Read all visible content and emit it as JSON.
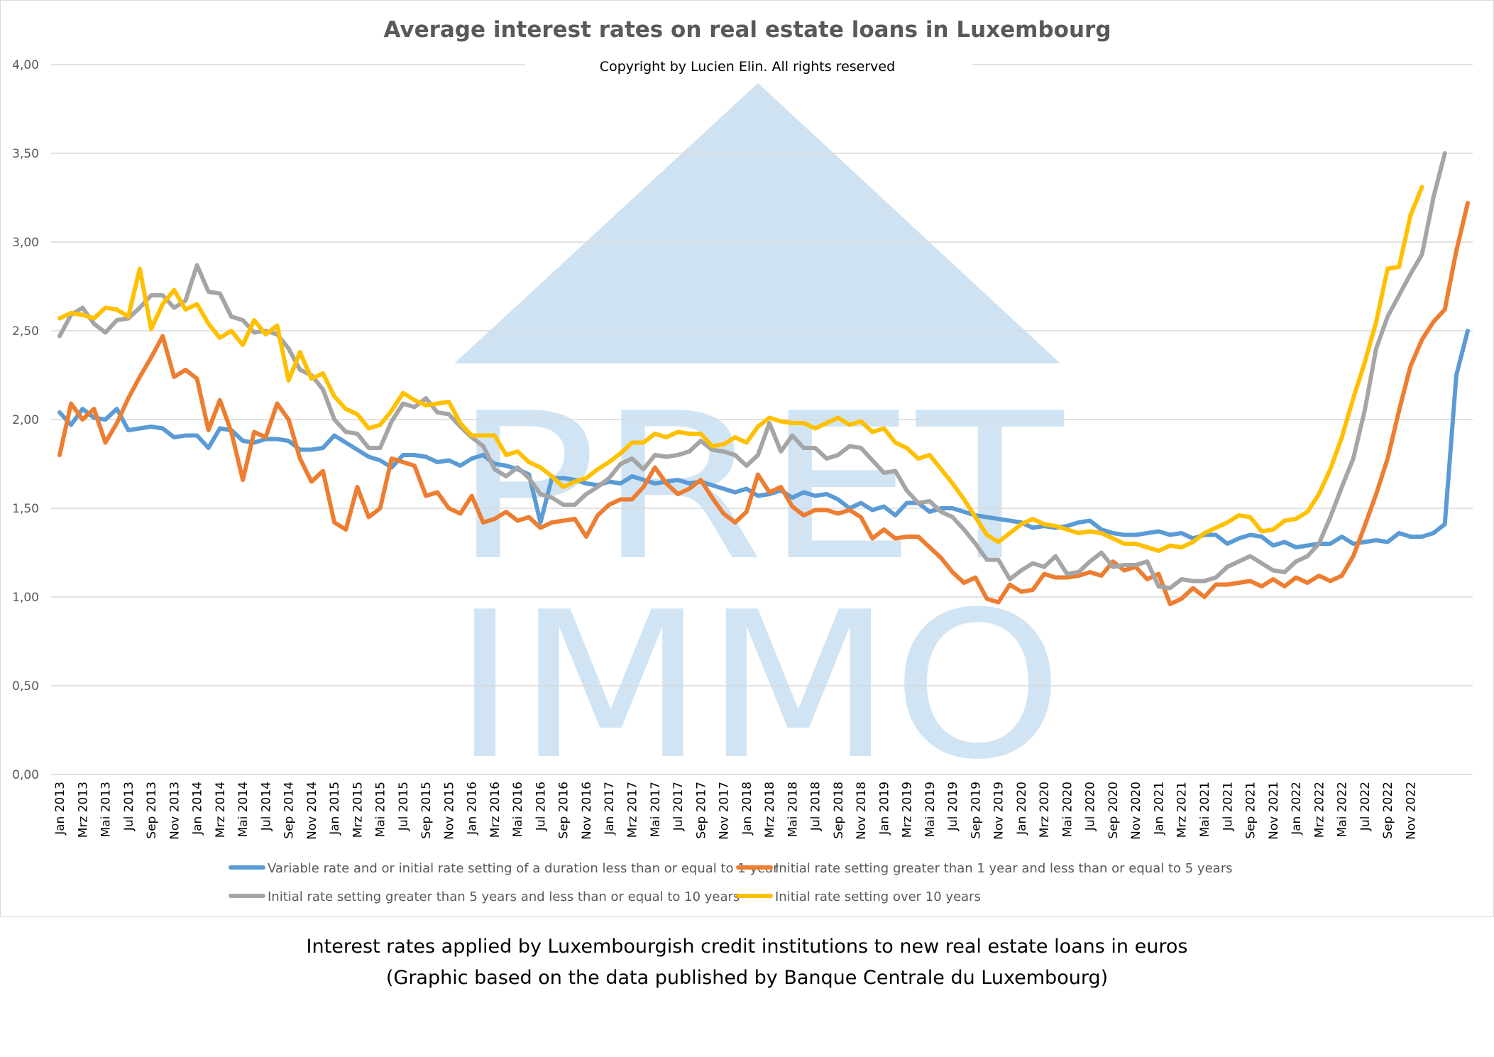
{
  "chart_data": {
    "type": "line",
    "title": "Average interest rates on real estate loans in Luxembourg",
    "subtitle": "Copyright by Lucien Elin. All rights reserved",
    "watermark": "PRET IMMO",
    "xlabel": "",
    "ylabel": "",
    "ylim": [
      0,
      4
    ],
    "yticks": [
      "0,00",
      "0,50",
      "1,00",
      "1,50",
      "2,00",
      "2,50",
      "3,00",
      "3,50",
      "4,00"
    ],
    "grid": true,
    "legend_position": "bottom",
    "start_month": "Jan 2013",
    "end_month": "Nov 2022",
    "xtick_labels": [
      "Jan 2013",
      "Mrz 2013",
      "Mai 2013",
      "Jul 2013",
      "Sep 2013",
      "Nov 2013",
      "Jan 2014",
      "Mrz 2014",
      "Mai 2014",
      "Jul 2014",
      "Sep 2014",
      "Nov 2014",
      "Jan 2015",
      "Mrz 2015",
      "Mai 2015",
      "Jul 2015",
      "Sep 2015",
      "Nov 2015",
      "Jan 2016",
      "Mrz 2016",
      "Mai 2016",
      "Jul 2016",
      "Sep 2016",
      "Nov 2016",
      "Jan 2017",
      "Mrz 2017",
      "Mai 2017",
      "Jul 2017",
      "Sep 2017",
      "Nov 2017",
      "Jan 2018",
      "Mrz 2018",
      "Mai 2018",
      "Jul 2018",
      "Sep 2018",
      "Nov 2018",
      "Jan 2019",
      "Mrz 2019",
      "Mai 2019",
      "Jul 2019",
      "Sep 2019",
      "Nov 2019",
      "Jan 2020",
      "Mrz 2020",
      "Mai 2020",
      "Jul 2020",
      "Sep 2020",
      "Nov 2020",
      "Jan 2021",
      "Mrz 2021",
      "Mai 2021",
      "Jul 2021",
      "Sep 2021",
      "Nov 2021",
      "Jan 2022",
      "Mrz 2022",
      "Mai 2022",
      "Jul 2022",
      "Sep 2022",
      "Nov 2022"
    ],
    "series": [
      {
        "name": "Variable rate and or initial rate setting of a duration less than or equal to 1 year",
        "color": "#5b9bd5",
        "yearly_anchors": [
          2.04,
          1.91,
          1.83,
          1.78,
          1.75,
          1.66,
          1.59,
          1.53,
          1.4,
          1.35,
          1.32,
          1.4
        ],
        "values": [
          2.04,
          1.97,
          2.06,
          2.01,
          2.0,
          2.06,
          1.94,
          1.95,
          1.96,
          1.95,
          1.9,
          1.91,
          1.91,
          1.84,
          1.95,
          1.94,
          1.88,
          1.87,
          1.89,
          1.89,
          1.88,
          1.83,
          1.83,
          1.84,
          1.91,
          1.87,
          1.83,
          1.79,
          1.77,
          1.73,
          1.8,
          1.8,
          1.79,
          1.76,
          1.77,
          1.74,
          1.78,
          1.8,
          1.75,
          1.74,
          1.72,
          1.69,
          1.42,
          1.67,
          1.67,
          1.66,
          1.64,
          1.63,
          1.65,
          1.64,
          1.68,
          1.66,
          1.64,
          1.65,
          1.66,
          1.64,
          1.65,
          1.63,
          1.61,
          1.59,
          1.61,
          1.57,
          1.58,
          1.6,
          1.56,
          1.59,
          1.57,
          1.58,
          1.55,
          1.5,
          1.53,
          1.49,
          1.51,
          1.46,
          1.53,
          1.53,
          1.48,
          1.5,
          1.5,
          1.48,
          1.46,
          1.45,
          1.44,
          1.43,
          1.42,
          1.39,
          1.4,
          1.39,
          1.4,
          1.42,
          1.43,
          1.38,
          1.36,
          1.35,
          1.35,
          1.36,
          1.37,
          1.35,
          1.36,
          1.33,
          1.35,
          1.35,
          1.3,
          1.33,
          1.35,
          1.34,
          1.29,
          1.31,
          1.28,
          1.29,
          1.3,
          1.3,
          1.34,
          1.3,
          1.31,
          1.32,
          1.31,
          1.36,
          1.34,
          1.34,
          1.36,
          1.41,
          2.25,
          2.5
        ]
      },
      {
        "name": "Initial rate setting greater than 1 year and less than or equal to 5 years",
        "color": "#ed7d31",
        "values": [
          1.8,
          2.09,
          2.0,
          2.06,
          1.87,
          1.98,
          2.12,
          2.24,
          2.35,
          2.47,
          2.24,
          2.28,
          2.23,
          1.94,
          2.11,
          1.93,
          1.66,
          1.93,
          1.9,
          2.09,
          2.0,
          1.78,
          1.65,
          1.71,
          1.42,
          1.38,
          1.62,
          1.45,
          1.5,
          1.78,
          1.76,
          1.74,
          1.57,
          1.59,
          1.5,
          1.47,
          1.57,
          1.42,
          1.44,
          1.48,
          1.43,
          1.45,
          1.39,
          1.42,
          1.43,
          1.44,
          1.34,
          1.46,
          1.52,
          1.55,
          1.55,
          1.62,
          1.73,
          1.64,
          1.58,
          1.61,
          1.66,
          1.56,
          1.47,
          1.42,
          1.48,
          1.69,
          1.59,
          1.62,
          1.51,
          1.46,
          1.49,
          1.49,
          1.47,
          1.49,
          1.45,
          1.33,
          1.38,
          1.33,
          1.34,
          1.34,
          1.28,
          1.22,
          1.14,
          1.08,
          1.11,
          0.99,
          0.97,
          1.07,
          1.03,
          1.04,
          1.13,
          1.11,
          1.11,
          1.12,
          1.14,
          1.12,
          1.2,
          1.15,
          1.17,
          1.1,
          1.13,
          0.96,
          0.99,
          1.05,
          1.0,
          1.07,
          1.07,
          1.08,
          1.09,
          1.06,
          1.1,
          1.06,
          1.11,
          1.08,
          1.12,
          1.09,
          1.12,
          1.23,
          1.4,
          1.58,
          1.78,
          2.05,
          2.3,
          2.45,
          2.55,
          2.62,
          2.95,
          3.22
        ]
      },
      {
        "name": "Initial rate setting greater than 5 years and less than or equal to 10 years",
        "color": "#a5a5a5",
        "values": [
          2.47,
          2.59,
          2.63,
          2.54,
          2.49,
          2.56,
          2.57,
          2.63,
          2.7,
          2.7,
          2.63,
          2.67,
          2.87,
          2.72,
          2.71,
          2.58,
          2.56,
          2.49,
          2.5,
          2.48,
          2.4,
          2.28,
          2.25,
          2.17,
          2.0,
          1.93,
          1.92,
          1.84,
          1.84,
          1.99,
          2.09,
          2.07,
          2.12,
          2.04,
          2.03,
          1.96,
          1.9,
          1.85,
          1.72,
          1.68,
          1.73,
          1.67,
          1.58,
          1.56,
          1.52,
          1.52,
          1.58,
          1.62,
          1.67,
          1.75,
          1.78,
          1.72,
          1.8,
          1.79,
          1.8,
          1.82,
          1.88,
          1.83,
          1.82,
          1.8,
          1.74,
          1.8,
          1.98,
          1.82,
          1.91,
          1.84,
          1.84,
          1.78,
          1.8,
          1.85,
          1.84,
          1.77,
          1.7,
          1.71,
          1.6,
          1.53,
          1.54,
          1.48,
          1.45,
          1.38,
          1.3,
          1.21,
          1.21,
          1.1,
          1.15,
          1.19,
          1.17,
          1.23,
          1.13,
          1.14,
          1.2,
          1.25,
          1.17,
          1.18,
          1.18,
          1.2,
          1.06,
          1.05,
          1.1,
          1.09,
          1.09,
          1.11,
          1.17,
          1.2,
          1.23,
          1.19,
          1.15,
          1.14,
          1.2,
          1.23,
          1.3,
          1.45,
          1.62,
          1.78,
          2.05,
          2.4,
          2.58,
          2.7,
          2.82,
          2.93,
          3.25,
          3.5
        ]
      },
      {
        "name": "Initial rate setting over 10 years",
        "color": "#ffc000",
        "values": [
          2.57,
          2.6,
          2.59,
          2.57,
          2.63,
          2.62,
          2.58,
          2.85,
          2.51,
          2.65,
          2.73,
          2.62,
          2.65,
          2.54,
          2.46,
          2.5,
          2.42,
          2.56,
          2.48,
          2.53,
          2.22,
          2.38,
          2.23,
          2.26,
          2.13,
          2.06,
          2.03,
          1.95,
          1.97,
          2.05,
          2.15,
          2.11,
          2.08,
          2.09,
          2.1,
          1.98,
          1.91,
          1.91,
          1.91,
          1.8,
          1.82,
          1.76,
          1.73,
          1.68,
          1.62,
          1.65,
          1.67,
          1.72,
          1.76,
          1.81,
          1.87,
          1.87,
          1.92,
          1.9,
          1.93,
          1.92,
          1.92,
          1.85,
          1.86,
          1.9,
          1.87,
          1.96,
          2.01,
          1.99,
          1.98,
          1.98,
          1.95,
          1.98,
          2.01,
          1.97,
          1.99,
          1.93,
          1.95,
          1.87,
          1.84,
          1.78,
          1.8,
          1.72,
          1.64,
          1.55,
          1.45,
          1.35,
          1.31,
          1.36,
          1.41,
          1.44,
          1.41,
          1.4,
          1.38,
          1.36,
          1.37,
          1.36,
          1.33,
          1.3,
          1.3,
          1.28,
          1.26,
          1.29,
          1.28,
          1.31,
          1.36,
          1.39,
          1.42,
          1.46,
          1.45,
          1.37,
          1.38,
          1.43,
          1.44,
          1.48,
          1.58,
          1.72,
          1.9,
          2.12,
          2.32,
          2.55,
          2.85,
          2.86,
          3.15,
          3.31
        ]
      }
    ]
  },
  "captions": {
    "line1": "Interest rates applied by Luxembourgish credit institutions to new real estate loans in euros",
    "line2": "(Graphic based on the data published by Banque Centrale du Luxembourg)"
  }
}
